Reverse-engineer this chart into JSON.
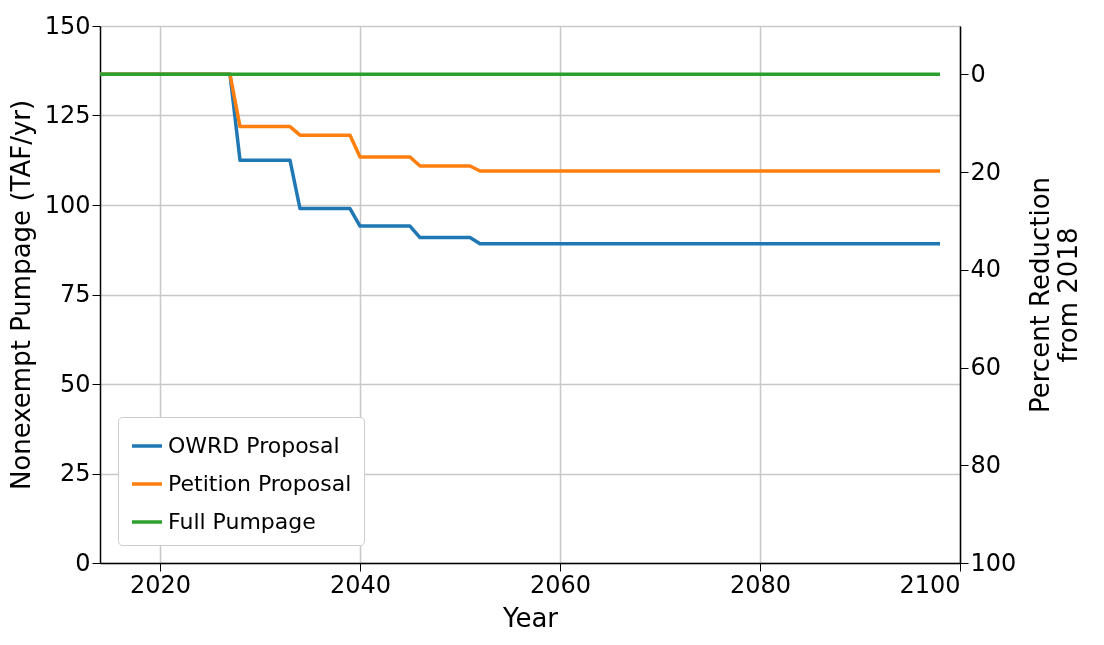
{
  "chart_data": {
    "type": "line",
    "xlabel": "Year",
    "ylabel": "Nonexempt Pumpage (TAF/yr)",
    "y2label": "Percent Reduction\nfrom 2018",
    "xlim": [
      2014,
      2100
    ],
    "xticks": [
      2020,
      2040,
      2060,
      2080,
      2100
    ],
    "ylim": [
      0,
      150
    ],
    "yticks": [
      0,
      25,
      50,
      75,
      100,
      125,
      150
    ],
    "y2lim": [
      100,
      -9.9
    ],
    "y2ticks": [
      0,
      20,
      40,
      60,
      80,
      100
    ],
    "grid": true,
    "legend": "bottom left",
    "line_style": "solid",
    "marker": "none",
    "series": [
      {
        "name": "OWRD Proposal",
        "color": "#1f77b4",
        "x": [
          2014,
          2027,
          2028,
          2033,
          2034,
          2039,
          2040,
          2045,
          2046,
          2051,
          2052,
          2098
        ],
        "values": [
          136.5,
          136.5,
          112.5,
          112.5,
          99.0,
          99.0,
          94.1,
          94.1,
          90.9,
          90.9,
          89.2,
          89.2
        ]
      },
      {
        "name": "Petition Proposal",
        "color": "#ff7f0e",
        "x": [
          2014,
          2027,
          2028,
          2033,
          2034,
          2039,
          2040,
          2045,
          2046,
          2051,
          2052,
          2098
        ],
        "values": [
          136.5,
          136.5,
          121.9,
          121.9,
          119.5,
          119.5,
          113.4,
          113.4,
          110.9,
          110.9,
          109.5,
          109.5
        ]
      },
      {
        "name": "Full Pumpage",
        "color": "#2ca02c",
        "x": [
          2014,
          2098
        ],
        "values": [
          136.5,
          136.5
        ]
      }
    ]
  }
}
